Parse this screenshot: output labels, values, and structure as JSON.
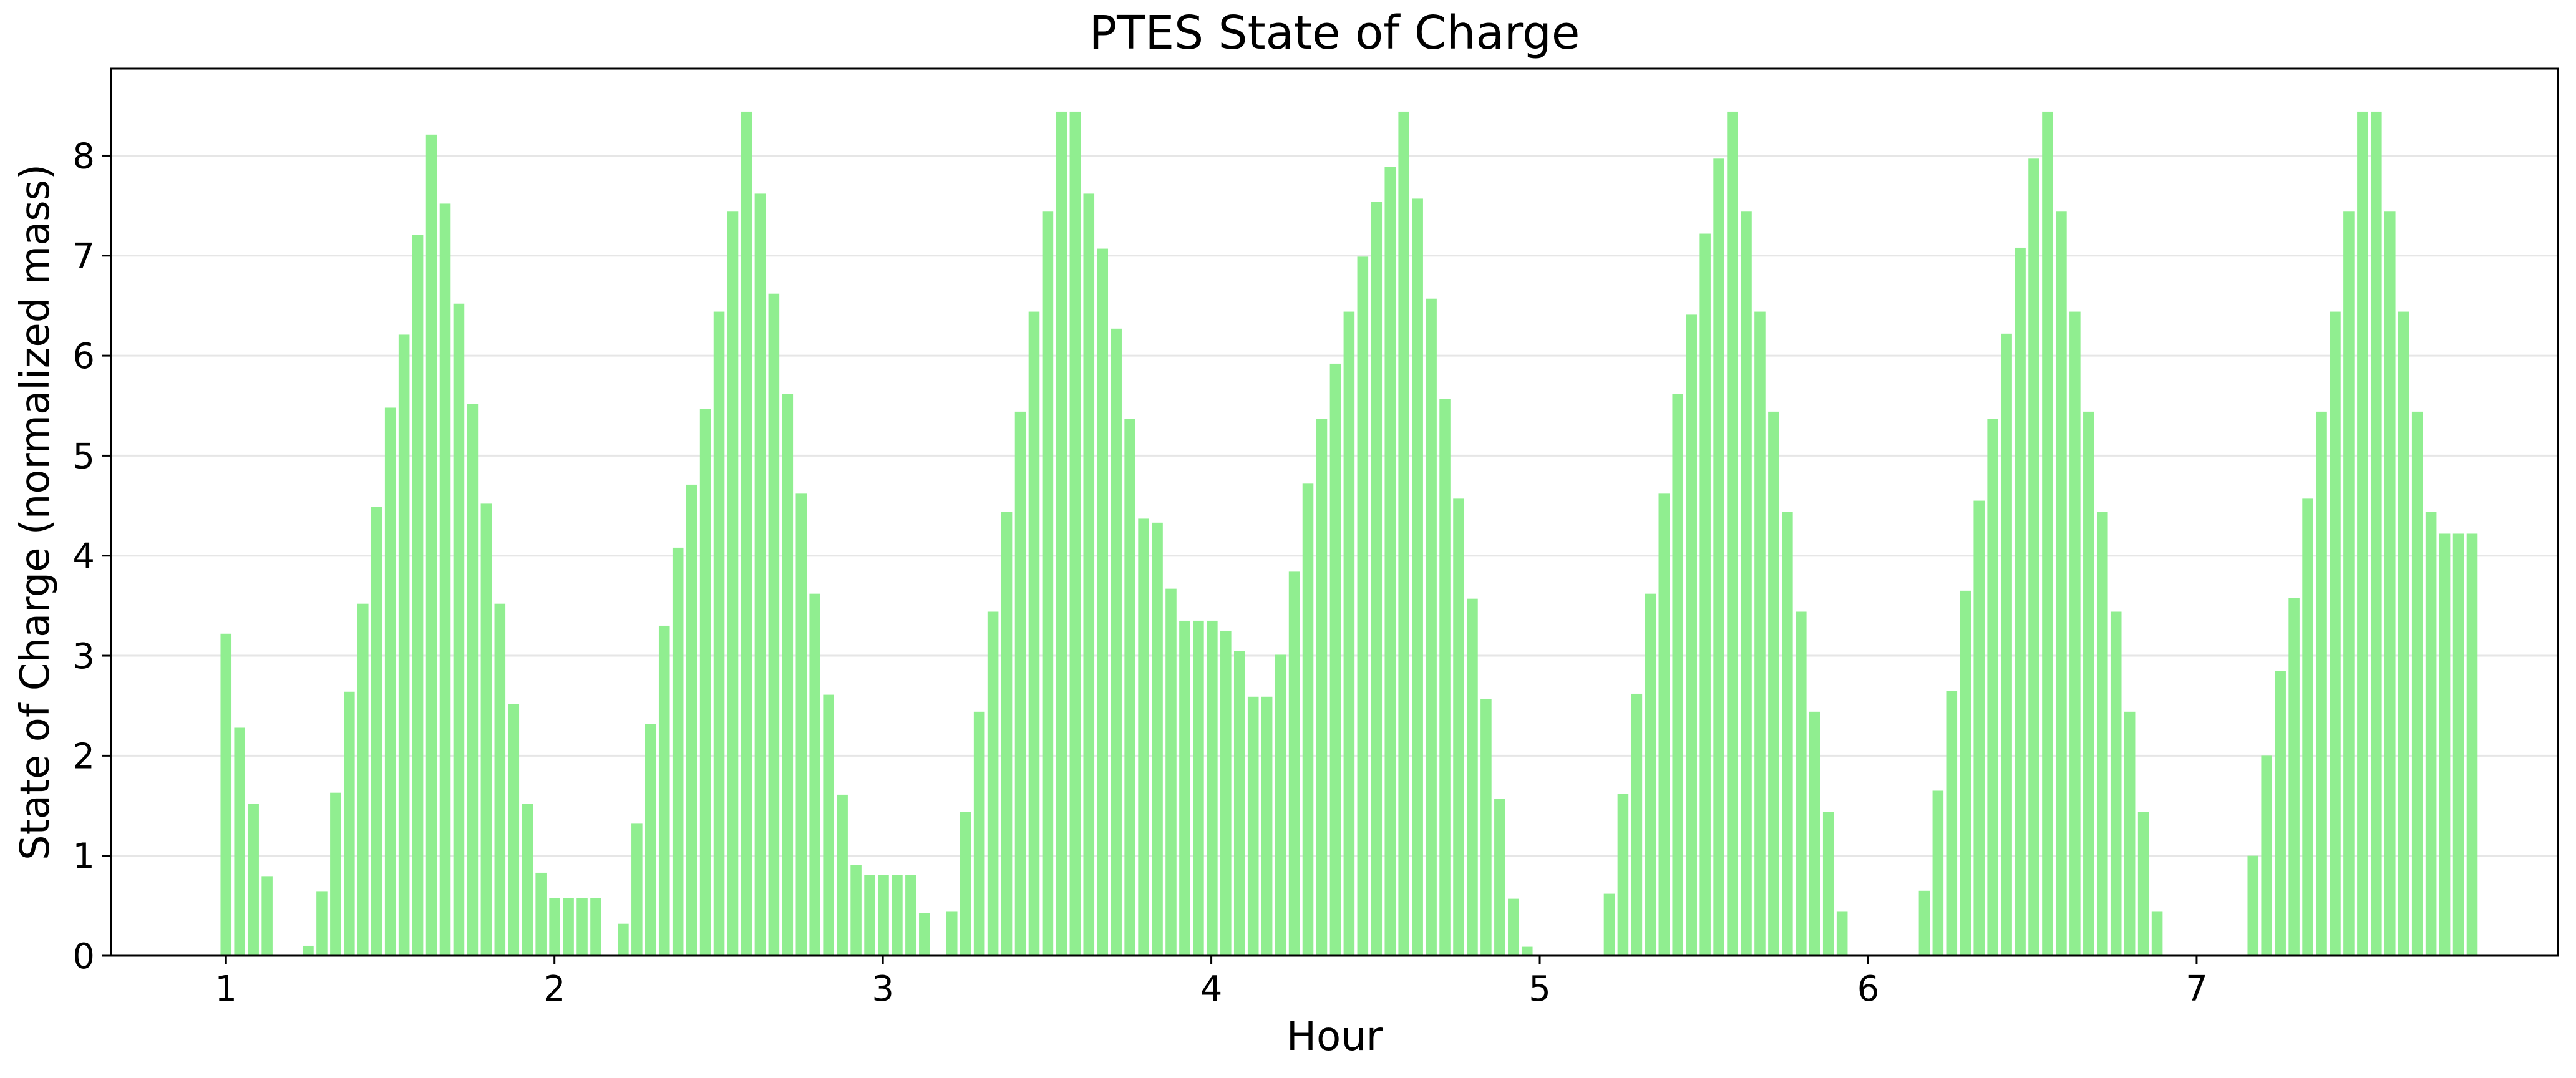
{
  "chart_data": {
    "type": "bar",
    "title": "PTES State of Charge",
    "xlabel": "Hour",
    "ylabel": "State of Charge (normalized mass)",
    "bar_color": "#90ee90",
    "grid": "y-major, light",
    "legend": "none",
    "x_ticks": [
      1,
      2,
      3,
      4,
      5,
      6,
      7
    ],
    "y_ticks": [
      0,
      1,
      2,
      3,
      4,
      5,
      6,
      7,
      8
    ],
    "xlim": [
      0.65,
      8.1
    ],
    "ylim": [
      0,
      8.87
    ],
    "bar_spacing": 0.0417,
    "x_start": 1.0,
    "values": [
      3.22,
      2.28,
      1.52,
      0.79,
      0.0,
      0.0,
      0.1,
      0.64,
      1.63,
      2.64,
      3.52,
      4.49,
      5.48,
      6.21,
      7.21,
      8.21,
      7.52,
      6.52,
      5.52,
      4.52,
      3.52,
      2.52,
      1.52,
      0.83,
      0.58,
      0.58,
      0.58,
      0.58,
      0.0,
      0.32,
      1.32,
      2.32,
      3.3,
      4.08,
      4.71,
      5.47,
      6.44,
      7.44,
      8.44,
      7.62,
      6.62,
      5.62,
      4.62,
      3.62,
      2.61,
      1.61,
      0.91,
      0.81,
      0.81,
      0.81,
      0.81,
      0.43,
      0.0,
      0.44,
      1.44,
      2.44,
      3.44,
      4.44,
      5.44,
      6.44,
      7.44,
      8.44,
      8.44,
      7.62,
      7.07,
      6.27,
      5.37,
      4.37,
      4.33,
      3.67,
      3.35,
      3.35,
      3.35,
      3.25,
      3.05,
      2.59,
      2.59,
      3.01,
      3.84,
      4.72,
      5.37,
      5.92,
      6.44,
      6.99,
      7.54,
      7.89,
      8.44,
      7.57,
      6.57,
      5.57,
      4.57,
      3.57,
      2.57,
      1.57,
      0.57,
      0.09,
      0.0,
      0.0,
      0.0,
      0.0,
      0.0,
      0.62,
      1.62,
      2.62,
      3.62,
      4.62,
      5.62,
      6.41,
      7.22,
      7.97,
      8.44,
      7.44,
      6.44,
      5.44,
      4.44,
      3.44,
      2.44,
      1.44,
      0.44,
      0.0,
      0.0,
      0.0,
      0.0,
      0.0,
      0.65,
      1.65,
      2.65,
      3.65,
      4.55,
      5.37,
      6.22,
      7.08,
      7.97,
      8.44,
      7.44,
      6.44,
      5.44,
      4.44,
      3.44,
      2.44,
      1.44,
      0.44,
      0.0,
      0.0,
      0.0,
      0.0,
      0.0,
      0.0,
      1.0,
      2.0,
      2.85,
      3.58,
      4.57,
      5.44,
      6.44,
      7.44,
      8.44,
      8.44,
      7.44,
      6.44,
      5.44,
      4.44,
      4.22,
      4.22,
      4.22
    ]
  }
}
